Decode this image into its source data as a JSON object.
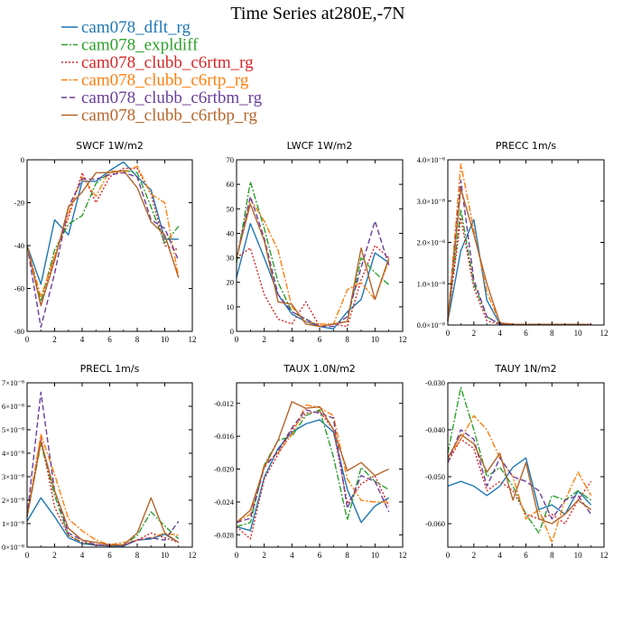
{
  "title": "Time Series at280E,-7N",
  "legend": [
    {
      "name": "cam078_dflt_rg",
      "color": "#1f77b4",
      "dash": "solid"
    },
    {
      "name": "cam078_expldiff",
      "color": "#2ca02c",
      "dash": "dashdot"
    },
    {
      "name": "cam078_clubb_c6rtm_rg",
      "color": "#d62728",
      "dash": "dot"
    },
    {
      "name": "cam078_clubb_c6rtp_rg",
      "color": "#ff7f0e",
      "dash": "dashdot"
    },
    {
      "name": "cam078_clubb_c6rtbm_rg",
      "color": "#6a3d9a",
      "dash": "dash"
    },
    {
      "name": "cam078_clubb_c6rtbp_rg",
      "color": "#b5652b",
      "dash": "solid"
    }
  ],
  "chart_data": [
    {
      "type": "line",
      "title": "SWCF   1W/m2",
      "xlim": [
        0,
        12
      ],
      "ylim": [
        -80,
        0
      ],
      "xticks": [
        "0",
        "2",
        "4",
        "6",
        "8",
        "10",
        "12"
      ],
      "yticks": [
        {
          "v": 0,
          "t": "0"
        },
        {
          "v": -20,
          "t": "-20"
        },
        {
          "v": -40,
          "t": "-40"
        },
        {
          "v": -60,
          "t": "-60"
        },
        {
          "v": -80,
          "t": "-80"
        }
      ],
      "series": [
        {
          "values": [
            -40,
            -58,
            -28,
            -35,
            -10,
            -10,
            -5,
            -1,
            -8,
            -14,
            -37,
            -37
          ]
        },
        {
          "values": [
            -40,
            -66,
            -42,
            -30,
            -26,
            -11,
            -6,
            -5,
            -6,
            -22,
            -39,
            -31
          ]
        },
        {
          "values": [
            -40,
            -68,
            -45,
            -27,
            -6,
            -20,
            -8,
            -4,
            -4,
            -16,
            -40,
            -42
          ]
        },
        {
          "values": [
            -40,
            -64,
            -45,
            -25,
            -8,
            -17,
            -5,
            -6,
            -3,
            -16,
            -20,
            -55
          ]
        },
        {
          "values": [
            -40,
            -78,
            -53,
            -22,
            -9,
            -9,
            -7,
            -6,
            -8,
            -28,
            -32,
            -47
          ]
        },
        {
          "values": [
            -40,
            -68,
            -47,
            -22,
            -15,
            -6,
            -6,
            -5,
            -13,
            -29,
            -35,
            -55
          ]
        }
      ]
    },
    {
      "type": "line",
      "title": "LWCF   1W/m2",
      "xlim": [
        0,
        12
      ],
      "ylim": [
        0,
        70
      ],
      "xticks": [
        "0",
        "2",
        "4",
        "6",
        "8",
        "10",
        "12"
      ],
      "yticks": [
        {
          "v": 0,
          "t": "0"
        },
        {
          "v": 10,
          "t": "10"
        },
        {
          "v": 20,
          "t": "20"
        },
        {
          "v": 30,
          "t": "30"
        },
        {
          "v": 40,
          "t": "40"
        },
        {
          "v": 50,
          "t": "50"
        },
        {
          "v": 60,
          "t": "60"
        },
        {
          "v": 70,
          "t": "70"
        }
      ],
      "series": [
        {
          "values": [
            22,
            44,
            30,
            15,
            7,
            4,
            2,
            1,
            8,
            13,
            32,
            28
          ]
        },
        {
          "values": [
            28,
            61,
            42,
            20,
            8,
            5,
            2,
            3,
            4,
            30,
            24,
            19
          ]
        },
        {
          "values": [
            30,
            34,
            15,
            5,
            3,
            12,
            2,
            3,
            2,
            21,
            35,
            30
          ]
        },
        {
          "values": [
            30,
            54,
            45,
            33,
            10,
            4,
            3,
            3,
            17,
            20,
            13,
            29
          ]
        },
        {
          "values": [
            30,
            55,
            38,
            15,
            8,
            5,
            2,
            2,
            6,
            26,
            45,
            27
          ]
        },
        {
          "values": [
            30,
            52,
            37,
            12,
            11,
            3,
            2,
            3,
            4,
            34,
            13,
            30
          ]
        }
      ]
    },
    {
      "type": "line",
      "title": "PRECC   1m/s",
      "xlim": [
        0,
        12
      ],
      "ylim": [
        0,
        4e-08
      ],
      "xticks": [
        "0",
        "2",
        "4",
        "6",
        "8",
        "10",
        "12"
      ],
      "yticks": [
        {
          "v": 0,
          "t": "0.0×10⁻⁸"
        },
        {
          "v": 1e-08,
          "t": "1.0×10⁻⁸"
        },
        {
          "v": 2e-08,
          "t": "2.0×10⁻⁸"
        },
        {
          "v": 3e-08,
          "t": "3.0×10⁻⁸"
        },
        {
          "v": 4e-08,
          "t": "4.0×10⁻⁸"
        }
      ],
      "series": [
        {
          "values": [
            1e-09,
            1.8e-08,
            2.55e-08,
            6e-09,
            2e-10,
            1e-10,
            1e-10,
            1e-10,
            1e-10,
            1e-10,
            1e-10,
            1e-10
          ]
        },
        {
          "values": [
            1e-09,
            2.8e-08,
            1e-08,
            2e-09,
            2e-10,
            1e-10,
            1e-10,
            1e-10,
            1e-10,
            1e-10,
            1e-10,
            1e-10
          ]
        },
        {
          "values": [
            1e-09,
            2.6e-08,
            9e-09,
            1e-09,
            2e-10,
            1e-10,
            1e-10,
            1e-10,
            1e-10,
            1e-10,
            1e-10,
            1e-10
          ]
        },
        {
          "values": [
            1e-09,
            3.9e-08,
            2.3e-08,
            8e-09,
            5e-10,
            2e-10,
            1e-10,
            1e-10,
            1e-10,
            1e-10,
            1e-10,
            1e-10
          ]
        },
        {
          "values": [
            1e-09,
            3.5e-08,
            1.1e-08,
            2e-09,
            2e-10,
            1e-10,
            1e-10,
            1e-10,
            1e-10,
            1e-10,
            1e-10,
            1e-10
          ]
        },
        {
          "values": [
            1e-09,
            3.3e-08,
            2.2e-08,
            1e-08,
            5e-10,
            2e-10,
            1e-10,
            1e-10,
            1e-10,
            1e-10,
            1e-10,
            1e-10
          ]
        }
      ]
    },
    {
      "type": "line",
      "title": "PRECL   1m/s",
      "xlim": [
        0,
        12
      ],
      "ylim": [
        0,
        7
      ],
      "xticks": [
        "0",
        "2",
        "4",
        "6",
        "8",
        "10",
        "12"
      ],
      "yticks": [
        {
          "v": 0,
          "t": "0×10⁻⁸"
        },
        {
          "v": 1,
          "t": "1×10⁻⁸"
        },
        {
          "v": 2,
          "t": "2×10⁻⁸"
        },
        {
          "v": 3,
          "t": "3×10⁻⁸"
        },
        {
          "v": 4,
          "t": "4×10⁻⁸"
        },
        {
          "v": 5,
          "t": "5×10⁻⁸"
        },
        {
          "v": 6,
          "t": "6×10⁻⁸"
        },
        {
          "v": 7,
          "t": "7×10⁻⁸"
        }
      ],
      "series": [
        {
          "values": [
            1.1,
            2.1,
            1.3,
            0.4,
            0.15,
            0.08,
            0.05,
            0.05,
            0.3,
            0.35,
            0.55,
            0.2
          ]
        },
        {
          "values": [
            1.3,
            4.4,
            2.2,
            0.5,
            0.2,
            0.1,
            0.05,
            0.1,
            0.5,
            1.5,
            0.9,
            0.35
          ]
        },
        {
          "values": [
            1.3,
            4.7,
            1.7,
            0.5,
            0.2,
            0.1,
            0.06,
            0.08,
            0.3,
            0.6,
            0.4,
            0.2
          ]
        },
        {
          "values": [
            1.3,
            4.8,
            3.1,
            1.2,
            0.7,
            0.3,
            0.1,
            0.2,
            0.3,
            0.4,
            0.6,
            0.5
          ]
        },
        {
          "values": [
            1.3,
            6.6,
            2.4,
            0.6,
            0.3,
            0.1,
            0.06,
            0.1,
            0.3,
            0.4,
            0.3,
            1.1
          ]
        },
        {
          "values": [
            1.3,
            4.5,
            2.4,
            0.8,
            0.3,
            0.2,
            0.1,
            0.1,
            0.6,
            2.1,
            0.6,
            0.2
          ]
        }
      ]
    },
    {
      "type": "line",
      "title": "TAUX   1.0N/m2",
      "xlim": [
        0,
        12
      ],
      "ylim": [
        -0.0295,
        -0.0095
      ],
      "xticks": [
        "0",
        "2",
        "4",
        "6",
        "8",
        "10",
        "12"
      ],
      "yticks": [
        {
          "v": -0.012,
          "t": "-0.012"
        },
        {
          "v": -0.016,
          "t": "-0.016"
        },
        {
          "v": -0.02,
          "t": "-0.020"
        },
        {
          "v": -0.024,
          "t": "-0.024"
        },
        {
          "v": -0.028,
          "t": "-0.028"
        }
      ],
      "series": [
        {
          "values": [
            -0.027,
            -0.0275,
            -0.021,
            -0.0175,
            -0.0155,
            -0.0145,
            -0.014,
            -0.0155,
            -0.0225,
            -0.0265,
            -0.0245,
            -0.0235
          ]
        },
        {
          "values": [
            -0.027,
            -0.0265,
            -0.0195,
            -0.0165,
            -0.016,
            -0.0135,
            -0.0128,
            -0.0185,
            -0.0262,
            -0.0198,
            -0.0215,
            -0.0225
          ]
        },
        {
          "values": [
            -0.027,
            -0.0285,
            -0.0212,
            -0.0182,
            -0.0152,
            -0.0132,
            -0.013,
            -0.0152,
            -0.0242,
            -0.0218,
            -0.0208,
            -0.0245
          ]
        },
        {
          "values": [
            -0.0265,
            -0.0255,
            -0.0195,
            -0.018,
            -0.0158,
            -0.0122,
            -0.0125,
            -0.0135,
            -0.0212,
            -0.0238,
            -0.024,
            -0.024
          ]
        },
        {
          "values": [
            -0.0265,
            -0.026,
            -0.0198,
            -0.0178,
            -0.015,
            -0.0128,
            -0.0132,
            -0.0138,
            -0.0248,
            -0.0208,
            -0.0215,
            -0.0252
          ]
        },
        {
          "values": [
            -0.0265,
            -0.025,
            -0.0198,
            -0.0165,
            -0.0118,
            -0.0126,
            -0.0124,
            -0.0152,
            -0.0202,
            -0.0192,
            -0.0208,
            -0.02
          ]
        }
      ]
    },
    {
      "type": "line",
      "title": "TAUY   1N/m2",
      "xlim": [
        0,
        12
      ],
      "ylim": [
        -0.065,
        -0.03
      ],
      "xticks": [
        "0",
        "2",
        "4",
        "6",
        "8",
        "10",
        "12"
      ],
      "yticks": [
        {
          "v": -0.03,
          "t": "-0.030"
        },
        {
          "v": -0.04,
          "t": "-0.040"
        },
        {
          "v": -0.05,
          "t": "-0.050"
        },
        {
          "v": -0.06,
          "t": "-0.060"
        }
      ],
      "series": [
        {
          "values": [
            -0.052,
            -0.051,
            -0.052,
            -0.054,
            -0.052,
            -0.048,
            -0.046,
            -0.057,
            -0.056,
            -0.058,
            -0.053,
            -0.056
          ]
        },
        {
          "values": [
            -0.045,
            -0.031,
            -0.04,
            -0.05,
            -0.048,
            -0.052,
            -0.058,
            -0.062,
            -0.054,
            -0.055,
            -0.053,
            -0.055
          ]
        },
        {
          "values": [
            -0.047,
            -0.042,
            -0.044,
            -0.053,
            -0.051,
            -0.053,
            -0.058,
            -0.059,
            -0.058,
            -0.06,
            -0.055,
            -0.051
          ]
        },
        {
          "values": [
            -0.046,
            -0.042,
            -0.037,
            -0.04,
            -0.046,
            -0.05,
            -0.059,
            -0.057,
            -0.064,
            -0.055,
            -0.049,
            -0.054
          ]
        },
        {
          "values": [
            -0.047,
            -0.04,
            -0.042,
            -0.052,
            -0.046,
            -0.05,
            -0.051,
            -0.053,
            -0.059,
            -0.055,
            -0.054,
            -0.058
          ]
        },
        {
          "values": [
            -0.046,
            -0.041,
            -0.043,
            -0.049,
            -0.045,
            -0.055,
            -0.047,
            -0.059,
            -0.06,
            -0.058,
            -0.055,
            -0.057
          ]
        }
      ]
    }
  ]
}
